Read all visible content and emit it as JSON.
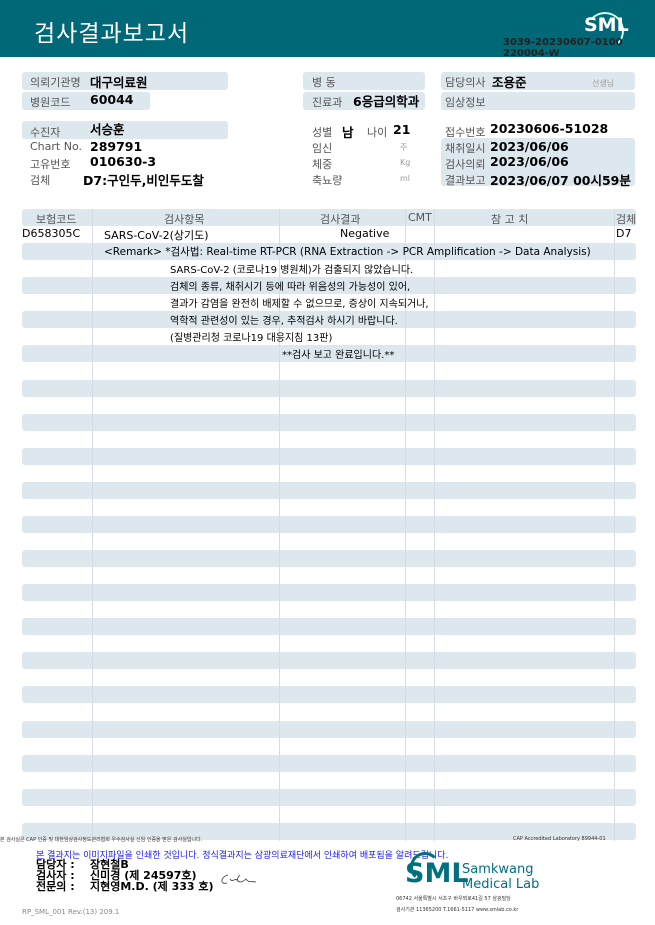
{
  "header": {
    "title": "검사결과보고서",
    "logo": "SML",
    "doc_no_1": "3039-20230607-0100",
    "doc_no_2": "220004-W"
  },
  "info": {
    "institution_label": "의뢰기관명",
    "institution": "대구의료원",
    "hospital_code_label": "병원코드",
    "hospital_code": "60044",
    "ward_label": "병   동",
    "ward": "",
    "dept_label": "진료과",
    "dept": "6응급의학과",
    "doctor_label": "담당의사",
    "doctor": "조용준",
    "doctor_suffix": "선생님",
    "clinical_label": "임상정보",
    "clinical": "",
    "patient_label": "수진자",
    "patient": "서승훈",
    "chart_label": "Chart No.",
    "chart": "289791",
    "unique_label": "고유번호",
    "unique": "010630-3",
    "specimen_label": "검체",
    "specimen": "D7:구인두,비인두도찰",
    "sex_label": "성별",
    "sex": "남",
    "age_label": "나이",
    "age": "21",
    "pregnancy_label": "임신",
    "pregnancy_unit": "주",
    "weight_label": "체중",
    "weight_unit": "Kg",
    "urine_label": "축뇨량",
    "urine_unit": "ml",
    "receipt_label": "접수번호",
    "receipt": "20230606-51028",
    "collected_label": "채취일시",
    "collected": "2023/06/06",
    "requested_label": "검사의뢰",
    "requested": "2023/06/06",
    "reported_label": "결과보고",
    "reported": "2023/06/07 00시59분"
  },
  "table": {
    "headers": [
      "보험코드",
      "검사항목",
      "검사결과",
      "CMT",
      "참 고 치",
      "검체"
    ],
    "row": {
      "code": "D658305C",
      "item": "SARS-CoV-2(상기도)",
      "result": "Negative",
      "specimen": "D7"
    },
    "remark": "<Remark> *검사법: Real-time RT-PCR (RNA Extraction -> PCR Amplification -> Data Analysis)",
    "lines": [
      "SARS-CoV-2 (코로나19 병원체)가 검출되지 않았습니다.",
      "검체의 종류, 채취시기 등에 따라 위음성의 가능성이 있어,",
      "결과가 감염을 완전히 배제할 수 없으므로, 증상이 지속되거나,",
      "역학적 관련성이 있는 경우, 추적검사 하시기 바랍니다.",
      "(질병관리청 코로나19 대응지침 13판)"
    ],
    "complete": "**검사  보고  완료입니다.**"
  },
  "footer": {
    "cert": "본 검사실은 CAP 인증 및 대한임상검사정도관리협회 우수검사실 신임 인증을 받은 검사실입니다.",
    "cap": "CAP Accredited Laboratory 89944-01",
    "notice": "본 결과지는 이미지파일을 인쇄한 것입니다. 정식결과지는 삼광의료재단에서 인쇄하여 배포됨을 알려드립니다.",
    "staff_label": "담당자 :",
    "staff": "장현철B",
    "tester_label": "검사자 :",
    "tester": "신미경 (제 24597호)",
    "specialist_label": "전문의 :",
    "specialist": "지현영M.D. (제 333 호)",
    "form_no": "RP_SML_001 Rev.(13) 209.1",
    "lab_logo": "SML",
    "lab_name_1": "Samkwang",
    "lab_name_2": "Medical Lab",
    "address": "06742 서울특별시 서초구 바우뫼로41길 57 삼광빌딩",
    "contact": "검사기관 11365200 T.1661-5117 www.smlab.co.kr"
  }
}
